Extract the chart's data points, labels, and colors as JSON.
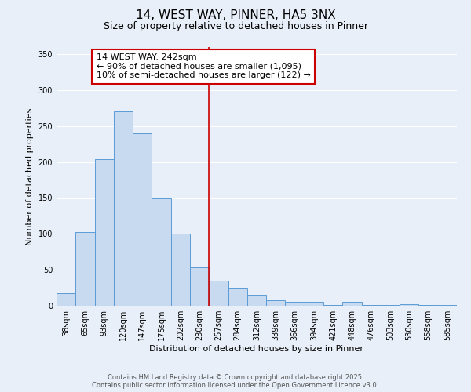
{
  "title": "14, WEST WAY, PINNER, HA5 3NX",
  "subtitle": "Size of property relative to detached houses in Pinner",
  "xlabel": "Distribution of detached houses by size in Pinner",
  "ylabel": "Number of detached properties",
  "categories": [
    "38sqm",
    "65sqm",
    "93sqm",
    "120sqm",
    "147sqm",
    "175sqm",
    "202sqm",
    "230sqm",
    "257sqm",
    "284sqm",
    "312sqm",
    "339sqm",
    "366sqm",
    "394sqm",
    "421sqm",
    "448sqm",
    "476sqm",
    "503sqm",
    "530sqm",
    "558sqm",
    "585sqm"
  ],
  "values": [
    18,
    103,
    204,
    270,
    240,
    150,
    100,
    53,
    35,
    25,
    15,
    8,
    6,
    5,
    1,
    5,
    1,
    1,
    2,
    1,
    1
  ],
  "bar_color": "#c8daf0",
  "bar_edge_color": "#5b9bd5",
  "bar_width": 1.0,
  "vline_x": 7.5,
  "vline_color": "#cc0000",
  "ylim": [
    0,
    360
  ],
  "yticks": [
    0,
    50,
    100,
    150,
    200,
    250,
    300,
    350
  ],
  "background_color": "#e8eff8",
  "grid_color": "#ffffff",
  "annotation_title": "14 WEST WAY: 242sqm",
  "annotation_line1": "← 90% of detached houses are smaller (1,095)",
  "annotation_line2": "10% of semi-detached houses are larger (122) →",
  "annotation_box_edge": "#cc0000",
  "footer_line1": "Contains HM Land Registry data © Crown copyright and database right 2025.",
  "footer_line2": "Contains public sector information licensed under the Open Government Licence v3.0.",
  "title_fontsize": 11,
  "subtitle_fontsize": 9,
  "xlabel_fontsize": 8,
  "ylabel_fontsize": 8,
  "tick_fontsize": 7,
  "footer_fontsize": 6,
  "annotation_fontsize": 8
}
